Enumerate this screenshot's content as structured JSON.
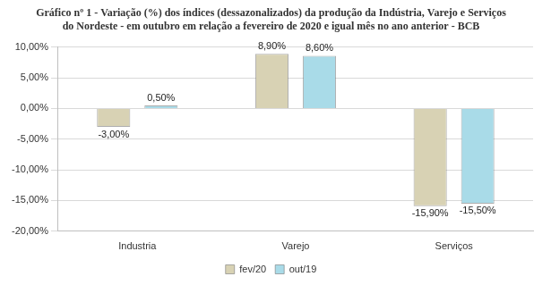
{
  "chart_data": {
    "type": "bar",
    "title": "Gráfico nº 1 - Variação (%) dos índices (dessazonalizados) da produção da Indústria, Varejo e Serviços do Nordeste - em outubro em relação a fevereiro de 2020 e igual mês no ano anterior - BCB",
    "categories": [
      "Industria",
      "Varejo",
      "Serviços"
    ],
    "series": [
      {
        "name": "fev/20",
        "color": "#d8d2b4",
        "values": [
          -3.0,
          8.9,
          -15.9
        ],
        "value_labels": [
          "-3,00%",
          "8,90%",
          "-15,90%"
        ]
      },
      {
        "name": "out/19",
        "color": "#a9dbe8",
        "values": [
          0.5,
          8.6,
          -15.5
        ],
        "value_labels": [
          "0,50%",
          "8,60%",
          "-15,50%"
        ]
      }
    ],
    "ylim": [
      -20,
      10
    ],
    "yticks": [
      {
        "value": -20,
        "label": "-20,00%"
      },
      {
        "value": -15,
        "label": "-15,00%"
      },
      {
        "value": -10,
        "label": "-10,00%"
      },
      {
        "value": -5,
        "label": "-5,00%"
      },
      {
        "value": 0,
        "label": "0,00%"
      },
      {
        "value": 5,
        "label": "5,00%"
      },
      {
        "value": 10,
        "label": "10,00%"
      }
    ],
    "grid": true,
    "legend": "bottom",
    "data_labels": true
  }
}
